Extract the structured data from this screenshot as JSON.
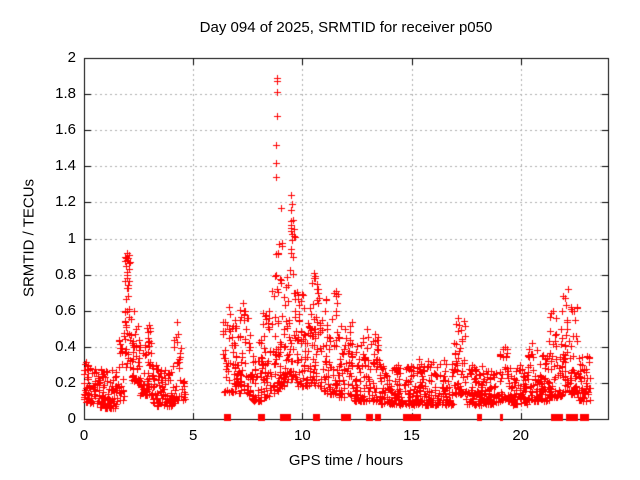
{
  "page": {
    "background": "#ffffff"
  },
  "chart_data": {
    "type": "scatter",
    "title": "Day 094 of 2025, SRMTID for receiver p050",
    "xlabel": "GPS time / hours",
    "ylabel": "SRMTID / TECUs",
    "xlim": [
      0,
      24
    ],
    "ylim": [
      0,
      2
    ],
    "xtick_values": [
      0,
      5,
      10,
      15,
      20
    ],
    "xtick_labels": [
      "0",
      "5",
      "10",
      "15",
      "20"
    ],
    "ytick_values": [
      0,
      0.2,
      0.4,
      0.6,
      0.8,
      1,
      1.2,
      1.4,
      1.6,
      1.8,
      2
    ],
    "ytick_labels": [
      "0",
      "0.2",
      "0.4",
      "0.6",
      "0.8",
      "1",
      "1.2",
      "1.4",
      "1.6",
      "1.8",
      "2"
    ],
    "grid": {
      "show": true,
      "dash": [
        2,
        3
      ]
    },
    "legend": "none",
    "colors": {
      "marker": "#ff0000",
      "grid": "#b0b0b0",
      "axis": "#000000",
      "text": "#000000",
      "background": "#ffffff"
    },
    "marker": {
      "type": "plus",
      "size": 7
    },
    "series": [
      {
        "name": "SRMTID scatter",
        "marker": "plus",
        "seed": 94,
        "segments_format": [
          "t_start_h",
          "t_end_h",
          "n_points",
          "y_min",
          "y_max",
          "low_skew"
        ],
        "segments": [
          [
            0.0,
            0.7,
            70,
            0.09,
            0.32,
            1.6
          ],
          [
            0.7,
            1.55,
            85,
            0.06,
            0.28,
            1.7
          ],
          [
            1.55,
            1.85,
            25,
            0.1,
            0.5,
            1.3
          ],
          [
            1.85,
            2.15,
            42,
            0.28,
            0.93,
            1.4
          ],
          [
            2.15,
            2.55,
            40,
            0.2,
            0.62,
            1.6
          ],
          [
            2.55,
            3.15,
            60,
            0.13,
            0.52,
            1.9
          ],
          [
            3.15,
            4.1,
            85,
            0.07,
            0.3,
            1.5
          ],
          [
            4.1,
            4.45,
            25,
            0.1,
            0.54,
            1.9
          ],
          [
            4.45,
            4.65,
            12,
            0.1,
            0.22,
            1.5
          ],
          [
            6.35,
            7.1,
            65,
            0.15,
            0.55,
            1.9
          ],
          [
            7.1,
            7.6,
            45,
            0.14,
            0.65,
            1.9
          ],
          [
            7.6,
            8.2,
            55,
            0.1,
            0.46,
            1.9
          ],
          [
            8.2,
            8.75,
            55,
            0.12,
            0.6,
            1.8
          ],
          [
            8.75,
            9.1,
            40,
            0.15,
            1.0,
            1.7
          ],
          [
            9.1,
            9.45,
            40,
            0.18,
            0.8,
            1.7
          ],
          [
            9.45,
            9.7,
            30,
            0.22,
            1.2,
            1.7
          ],
          [
            9.7,
            10.35,
            70,
            0.18,
            0.72,
            1.6
          ],
          [
            10.35,
            10.95,
            60,
            0.18,
            0.8,
            1.6
          ],
          [
            10.95,
            11.65,
            65,
            0.14,
            0.7,
            1.9
          ],
          [
            11.65,
            12.3,
            60,
            0.12,
            0.55,
            1.9
          ],
          [
            12.3,
            13.55,
            110,
            0.1,
            0.46,
            2.1
          ],
          [
            13.55,
            14.6,
            95,
            0.08,
            0.3,
            1.8
          ],
          [
            14.6,
            15.35,
            65,
            0.08,
            0.3,
            1.8
          ],
          [
            15.35,
            16.9,
            140,
            0.08,
            0.33,
            1.9
          ],
          [
            16.9,
            17.45,
            50,
            0.14,
            0.56,
            2.1
          ],
          [
            17.45,
            19.0,
            135,
            0.08,
            0.3,
            1.8
          ],
          [
            19.0,
            19.55,
            50,
            0.1,
            0.4,
            2.1
          ],
          [
            19.55,
            20.3,
            65,
            0.08,
            0.3,
            1.8
          ],
          [
            20.3,
            20.75,
            40,
            0.1,
            0.42,
            1.9
          ],
          [
            20.75,
            21.3,
            50,
            0.1,
            0.36,
            1.8
          ],
          [
            21.3,
            22.0,
            70,
            0.12,
            0.62,
            1.9
          ],
          [
            22.0,
            22.6,
            60,
            0.14,
            0.72,
            1.8
          ],
          [
            22.6,
            23.2,
            50,
            0.1,
            0.35,
            1.8
          ]
        ],
        "peak_points": [
          [
            8.82,
            1.89
          ],
          [
            8.86,
            1.87
          ],
          [
            8.84,
            1.81
          ],
          [
            8.82,
            1.68
          ],
          [
            8.8,
            1.52
          ],
          [
            8.81,
            1.42
          ],
          [
            8.78,
            1.34
          ],
          [
            9.0,
            1.17
          ],
          [
            9.07,
            0.96
          ],
          [
            8.92,
            0.97
          ],
          [
            8.88,
            0.92
          ],
          [
            9.5,
            1.24
          ],
          [
            9.52,
            1.19
          ],
          [
            9.48,
            1.16
          ],
          [
            9.55,
            1.1
          ],
          [
            9.5,
            1.04
          ],
          [
            9.53,
            0.99
          ],
          [
            9.47,
            0.94
          ],
          [
            9.58,
            0.9
          ],
          [
            1.95,
            0.92
          ],
          [
            1.97,
            0.88
          ],
          [
            1.93,
            0.85
          ],
          [
            1.99,
            0.8
          ],
          [
            1.96,
            0.78
          ],
          [
            2.02,
            0.74
          ],
          [
            10.55,
            0.81
          ],
          [
            10.6,
            0.79
          ],
          [
            10.68,
            0.75
          ],
          [
            10.72,
            0.7
          ],
          [
            11.1,
            0.66
          ],
          [
            11.52,
            0.71
          ],
          [
            11.55,
            0.68
          ],
          [
            17.15,
            0.56
          ],
          [
            17.18,
            0.52
          ],
          [
            17.12,
            0.49
          ],
          [
            22.15,
            0.72
          ],
          [
            21.95,
            0.68
          ],
          [
            22.05,
            0.67
          ],
          [
            22.3,
            0.62
          ],
          [
            22.45,
            0.6
          ],
          [
            22.5,
            0.55
          ],
          [
            21.6,
            0.56
          ],
          [
            21.9,
            0.6
          ],
          [
            4.28,
            0.54
          ],
          [
            4.3,
            0.47
          ],
          [
            2.98,
            0.52
          ],
          [
            3.02,
            0.49
          ],
          [
            6.62,
            0.62
          ],
          [
            6.7,
            0.58
          ],
          [
            7.3,
            0.64
          ],
          [
            7.35,
            0.6
          ],
          [
            7.5,
            0.56
          ],
          [
            8.62,
            0.71
          ],
          [
            8.68,
            0.68
          ],
          [
            12.98,
            0.5
          ],
          [
            13.35,
            0.47
          ],
          [
            13.42,
            0.44
          ],
          [
            19.3,
            0.4
          ],
          [
            20.5,
            0.42
          ]
        ]
      },
      {
        "name": "flagged epochs at y=0",
        "marker": "filled-square",
        "y": 0,
        "square_x": [
          6.56,
          8.09,
          9.11,
          9.3,
          10.62,
          11.9,
          12.05,
          14.75,
          14.87,
          15.0,
          15.12,
          15.25,
          21.52,
          21.62,
          21.74,
          22.38,
          22.46,
          22.85,
          22.95
        ],
        "thin_tick_x": [
          12.95,
          13.05,
          13.15,
          13.38,
          13.5,
          18.05,
          18.14,
          19.1,
          22.1,
          22.18
        ]
      }
    ]
  }
}
